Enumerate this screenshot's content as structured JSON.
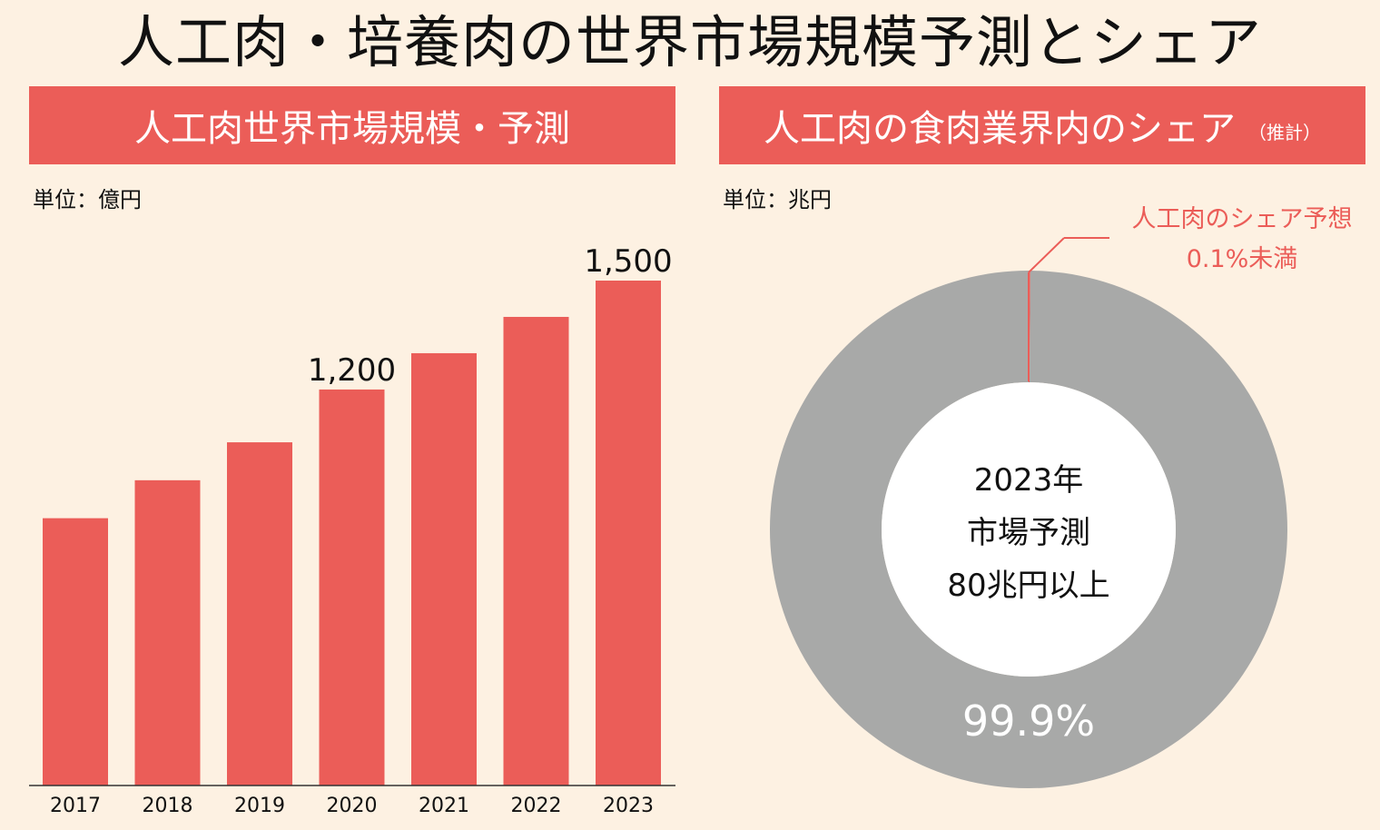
{
  "title": "人工肉・培養肉の世界市場規模予測とシェア",
  "left_panel": {
    "header": "人工肉世界市場規模・予測",
    "unit": "単位：億円"
  },
  "right_panel": {
    "header": "人工肉の食肉業界内のシェア",
    "header_note": "（推計）",
    "unit": "単位：兆円",
    "callout_line1": "人工肉のシェア予想",
    "callout_line2": "0.1%未満",
    "center_line1": "2023年",
    "center_line2": "市場予測",
    "center_line3": "80兆円以上",
    "ring_label": "99.9%"
  },
  "colors": {
    "accent": "#eb5d58",
    "grey": "#a8a9a8",
    "background": "#fdf1e2"
  },
  "chart_data": [
    {
      "type": "bar",
      "title": "人工肉世界市場規模・予測",
      "unit": "単位：億円",
      "categories": [
        "2017",
        "2018",
        "2019",
        "2020",
        "2021",
        "2022",
        "2023"
      ],
      "values": [
        810,
        925,
        1040,
        1200,
        1310,
        1420,
        1530
      ],
      "value_labels": {
        "3": "1,200",
        "6": "1,500"
      },
      "grid": false
    },
    {
      "type": "pie",
      "title": "人工肉の食肉業界内のシェア",
      "unit": "単位：兆円",
      "donut": true,
      "slices": [
        {
          "label": "人工肉のシェア予想",
          "value": 0.1,
          "display": "0.1%未満"
        },
        {
          "label": "",
          "value": 99.9,
          "display": "99.9%"
        }
      ]
    }
  ]
}
